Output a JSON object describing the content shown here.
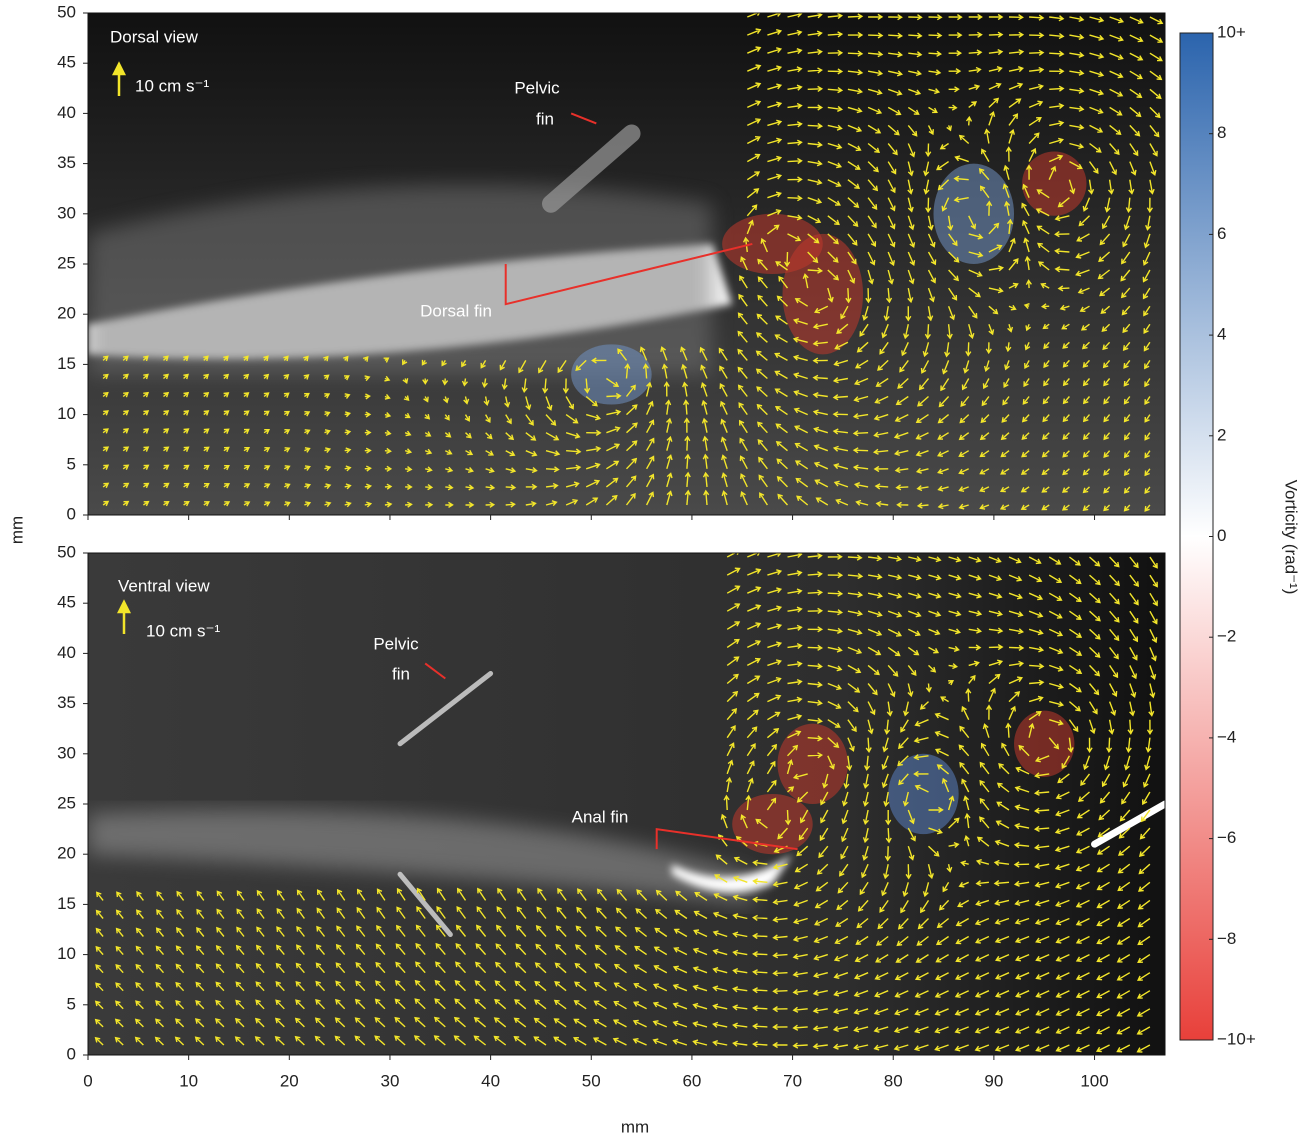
{
  "chart_data": [
    {
      "type": "image",
      "title": "Dorsal view",
      "scale_label": "10 cm s⁻¹",
      "annotations": [
        "Pelvic",
        "fin",
        "Dorsal fin"
      ],
      "ylabel": "mm",
      "xlim": [
        0,
        107
      ],
      "ylim": [
        0,
        50
      ],
      "yticks": [
        0,
        5,
        10,
        15,
        20,
        25,
        30,
        35,
        40,
        45,
        50
      ]
    },
    {
      "type": "image",
      "title": "Ventral view",
      "scale_label": "10 cm s⁻¹",
      "annotations": [
        "Pelvic",
        "fin",
        "Anal fin"
      ],
      "xlabel": "mm",
      "xlim": [
        0,
        107
      ],
      "ylim": [
        0,
        50
      ],
      "yticks": [
        0,
        5,
        10,
        15,
        20,
        25,
        30,
        35,
        40,
        45,
        50
      ],
      "xticks": [
        0,
        10,
        20,
        30,
        40,
        50,
        60,
        70,
        80,
        90,
        100
      ]
    },
    {
      "type": "colorbar",
      "label": "Vorticity (rad⁻¹)",
      "ylim": [
        -10,
        10
      ],
      "colors": [
        "#e8403a",
        "#ffffff",
        "#2b64ad"
      ],
      "yticks": [
        {
          "value": 10,
          "label": "10+"
        },
        8,
        6,
        4,
        2,
        0,
        {
          "value": -2,
          "label": "−2"
        },
        {
          "value": -4,
          "label": "−4"
        },
        {
          "value": -6,
          "label": "−6"
        },
        {
          "value": -8,
          "label": "−8"
        },
        {
          "value": -10,
          "label": "−10+"
        }
      ]
    }
  ]
}
